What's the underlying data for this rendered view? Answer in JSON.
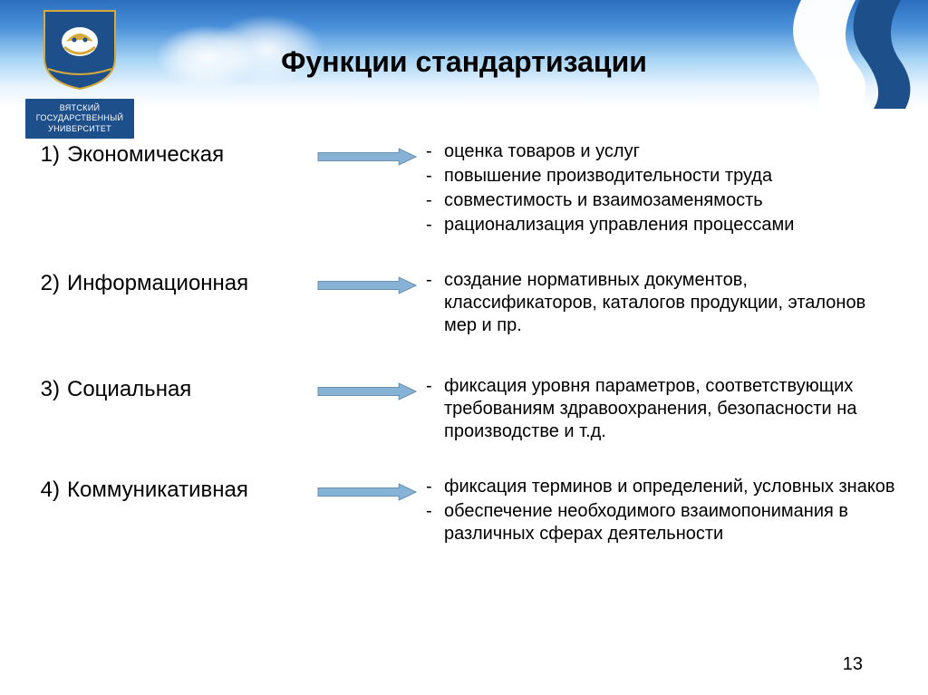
{
  "slide": {
    "title": "Функции стандартизации",
    "title_fontsize": 32,
    "page_number": "13",
    "background_gradient": [
      "#2b6fbf",
      "#4a90d9",
      "#a9d5f5",
      "#e9f4fe",
      "#ffffff"
    ],
    "arrow": {
      "fill": "#86b3d5",
      "stroke": "#6a8faf",
      "width": 110,
      "height": 20
    },
    "logo": {
      "shield_fill": "#1d4f8b",
      "shield_gold": "#d7a93a",
      "line1": "ВЯТСКИЙ",
      "line2": "ГОСУДАРСТВЕННЫЙ",
      "line3": "УНИВЕРСИТЕТ"
    },
    "ribbon_color": "#1d4f8b",
    "functions": [
      {
        "num": "1)",
        "name": "Экономическая",
        "details": [
          "оценка товаров и услуг",
          "повышение производительности труда",
          "совместимость и взаимозаменямость",
          "рационализация управления процессами"
        ],
        "spacing_after": 34
      },
      {
        "num": "2)",
        "name": "Информационная",
        "details": [
          "создание нормативных документов, классификаторов, каталогов продукции, эталонов мер и пр."
        ],
        "spacing_after": 40
      },
      {
        "num": "3)",
        "name": "Социальная",
        "details": [
          "фиксация уровня параметров, соответствующих требованиям здравоохранения, безопасности на производстве и т.д."
        ],
        "spacing_after": 34
      },
      {
        "num": "4)",
        "name": "Коммуникативная",
        "details": [
          "фиксация терминов и определений, условных знаков",
          "обеспечение необходимого взаимопонимания в различных сферах деятельности"
        ],
        "spacing_after": 0
      }
    ]
  }
}
